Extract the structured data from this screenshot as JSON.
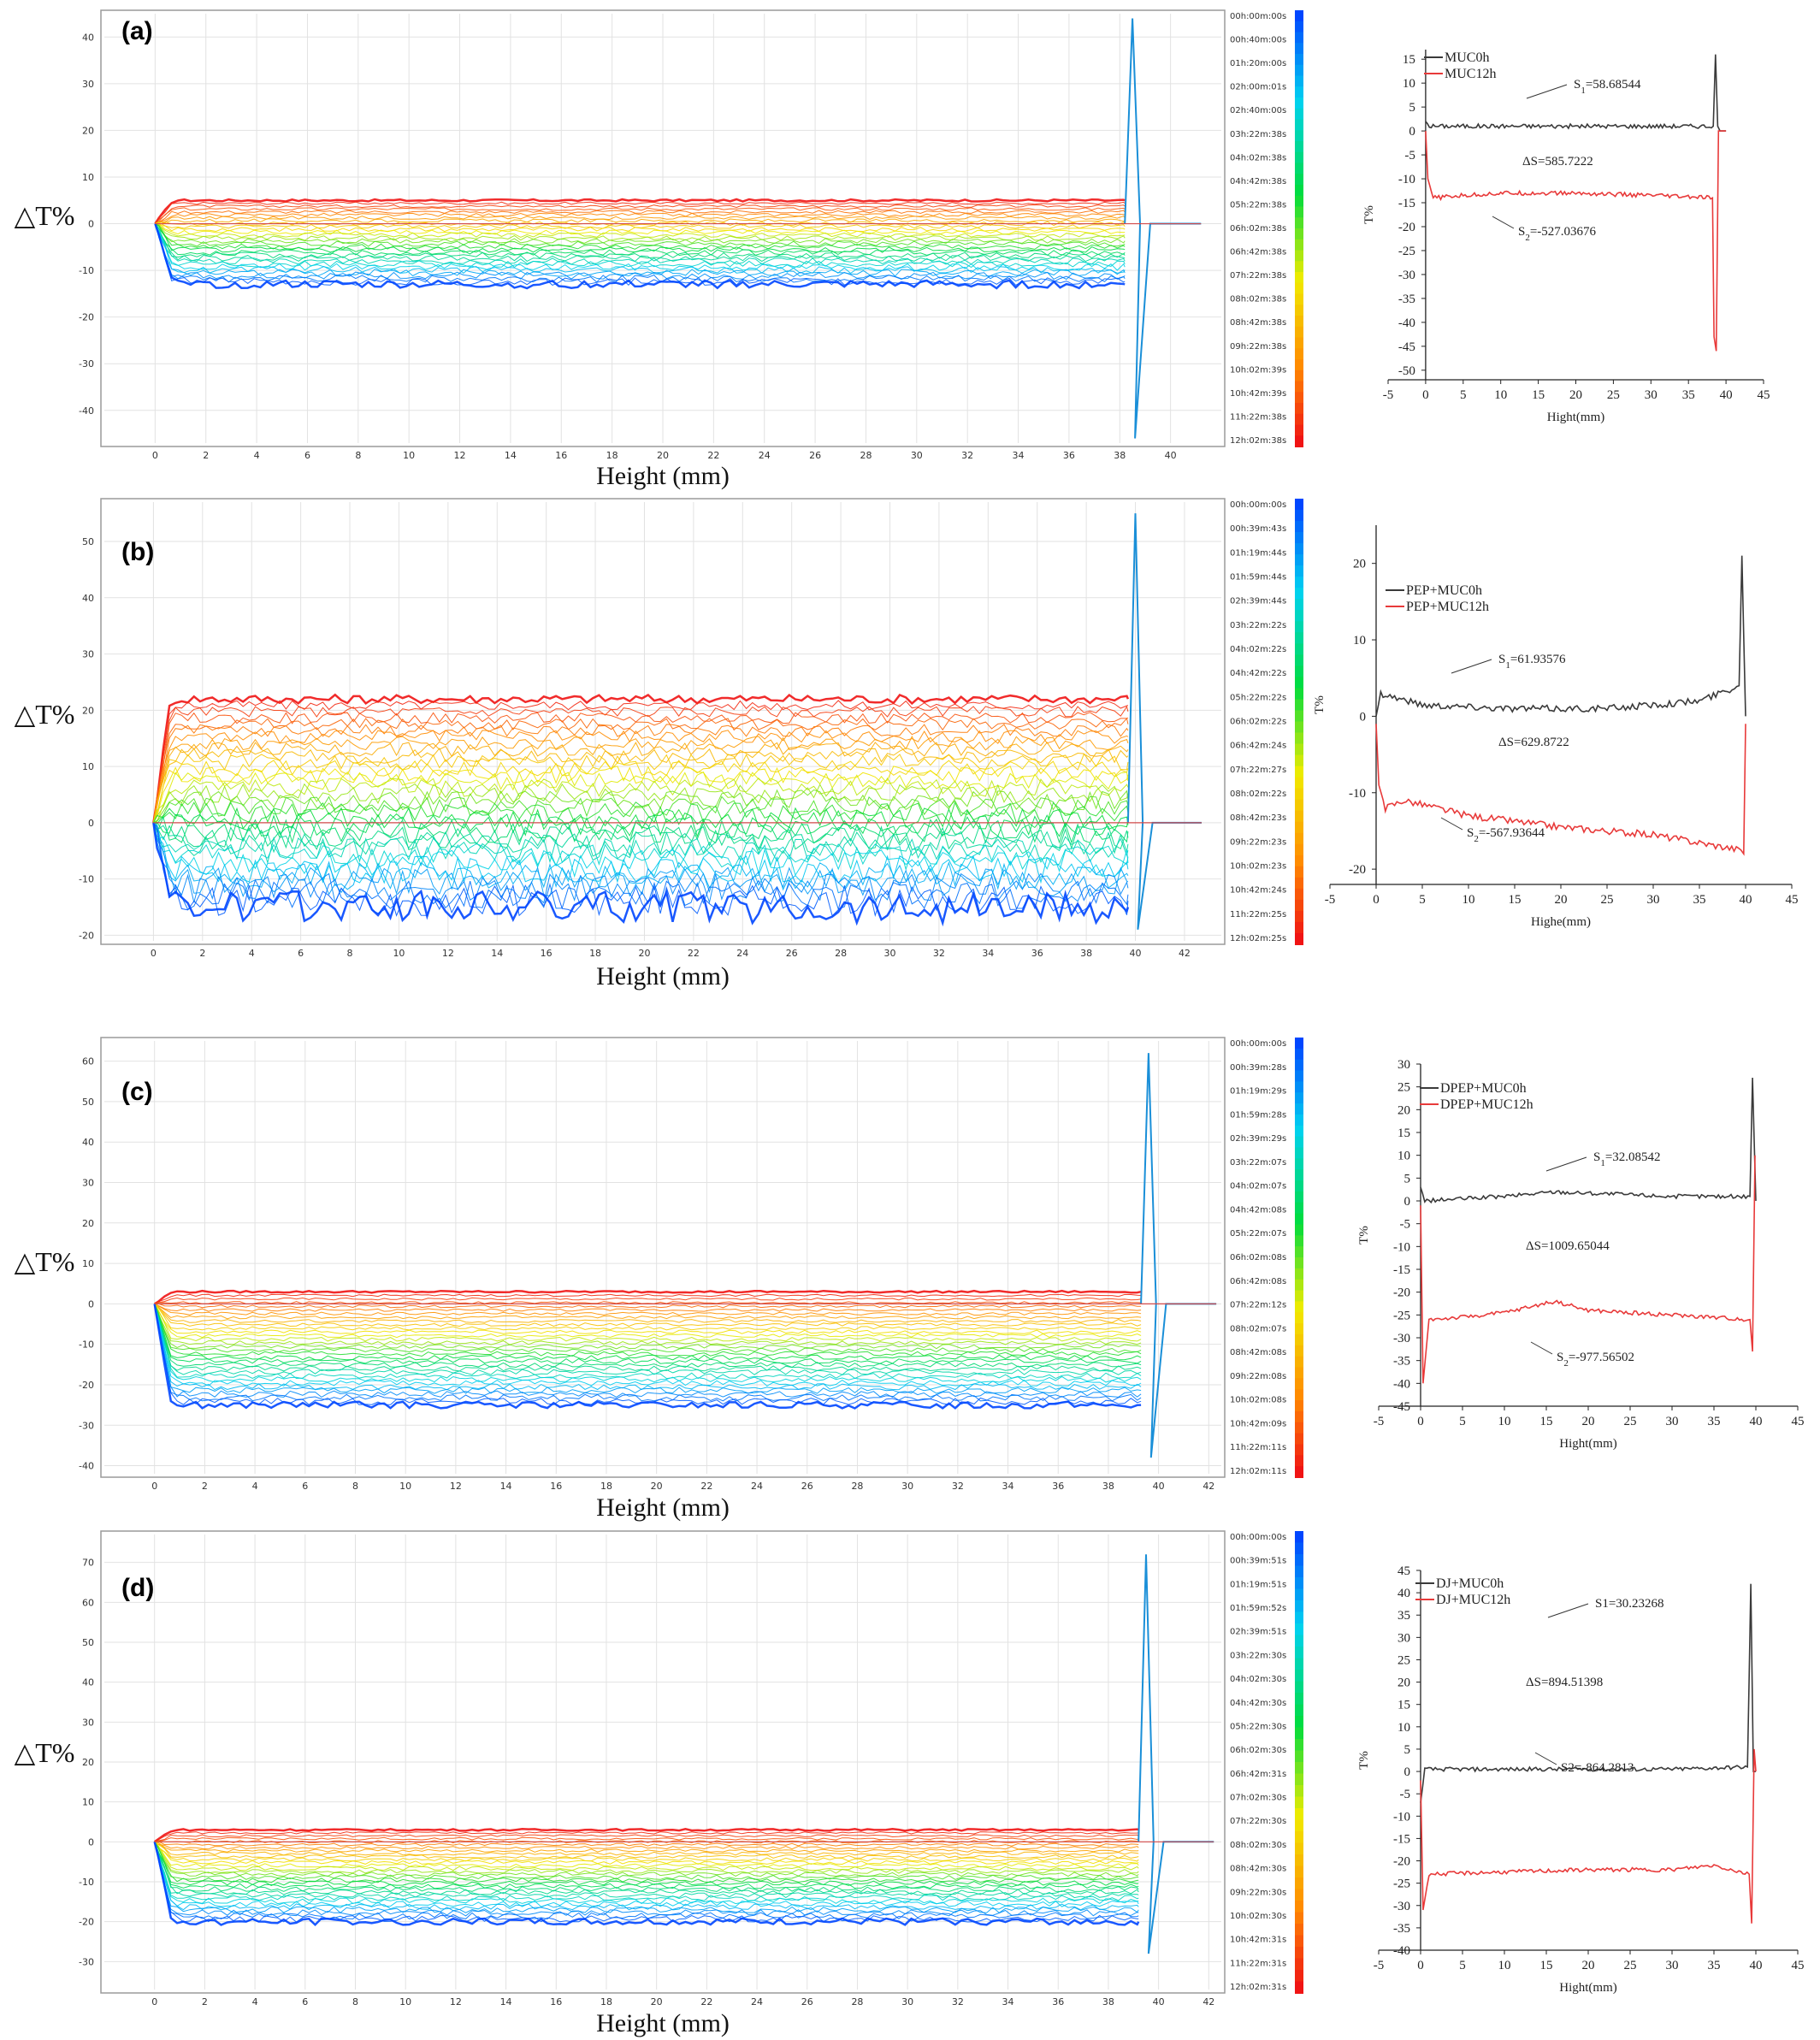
{
  "chart_data": [
    {
      "panel": "(a)",
      "type": "line",
      "role": "turbiscan-delta-transmission",
      "xlabel": "Height (mm)",
      "ylabel": "△T%",
      "xlim": [
        -2,
        42
      ],
      "ylim": [
        -47,
        45
      ],
      "xticks": [
        0,
        2,
        4,
        6,
        8,
        10,
        12,
        14,
        16,
        18,
        20,
        22,
        24,
        26,
        28,
        30,
        32,
        34,
        36,
        38,
        40
      ],
      "yticks": [
        -40,
        -30,
        -20,
        -10,
        0,
        10,
        20,
        30,
        40
      ],
      "sample_end": 38.2,
      "colorbar_times": [
        "00h:00m:00s",
        "00h:40m:00s",
        "01h:20m:00s",
        "02h:00m:01s",
        "02h:40m:00s",
        "03h:22m:38s",
        "04h:02m:38s",
        "04h:42m:38s",
        "05h:22m:38s",
        "06h:02m:38s",
        "06h:42m:38s",
        "07h:22m:38s",
        "08h:02m:38s",
        "08h:42m:38s",
        "09h:22m:38s",
        "10h:02m:39s",
        "10h:42m:39s",
        "11h:22m:38s",
        "12h:02m:38s"
      ],
      "curve_profile": {
        "top_level": 5,
        "bottom_level": -13,
        "n_curves": 30,
        "spike_max": 44,
        "spike_min": -46
      }
    },
    {
      "panel": "(b)",
      "type": "line",
      "role": "turbiscan-delta-transmission",
      "xlabel": "Height (mm)",
      "ylabel": "△T%",
      "xlim": [
        -2,
        43.5
      ],
      "ylim": [
        -21,
        57
      ],
      "xticks": [
        0,
        2,
        4,
        6,
        8,
        10,
        12,
        14,
        16,
        18,
        20,
        22,
        24,
        26,
        28,
        30,
        32,
        34,
        36,
        38,
        40,
        42
      ],
      "yticks": [
        -20,
        -10,
        0,
        10,
        20,
        30,
        40,
        50
      ],
      "sample_end": 39.7,
      "colorbar_times": [
        "00h:00m:00s",
        "00h:39m:43s",
        "01h:19m:44s",
        "01h:59m:44s",
        "02h:39m:44s",
        "03h:22m:22s",
        "04h:02m:22s",
        "04h:42m:22s",
        "05h:22m:22s",
        "06h:02m:22s",
        "06h:42m:24s",
        "07h:22m:27s",
        "08h:02m:22s",
        "08h:42m:23s",
        "09h:22m:23s",
        "10h:02m:23s",
        "10h:42m:24s",
        "11h:22m:25s",
        "12h:02m:25s"
      ],
      "curve_profile": {
        "top_level": 22,
        "bottom_level": -15,
        "n_curves": 34,
        "spike_max": 55,
        "spike_min": -19
      }
    },
    {
      "panel": "(c)",
      "type": "line",
      "role": "turbiscan-delta-transmission",
      "xlabel": "Height (mm)",
      "ylabel": "△T%",
      "xlim": [
        -2,
        42.5
      ],
      "ylim": [
        -42,
        65
      ],
      "xticks": [
        0,
        2,
        4,
        6,
        8,
        10,
        12,
        14,
        16,
        18,
        20,
        22,
        24,
        26,
        28,
        30,
        32,
        34,
        36,
        38,
        40,
        42
      ],
      "yticks": [
        -40,
        -30,
        -20,
        -10,
        0,
        10,
        20,
        30,
        40,
        50,
        60
      ],
      "sample_end": 39.3,
      "colorbar_times": [
        "00h:00m:00s",
        "00h:39m:28s",
        "01h:19m:29s",
        "01h:59m:28s",
        "02h:39m:29s",
        "03h:22m:07s",
        "04h:02m:07s",
        "04h:42m:08s",
        "05h:22m:07s",
        "06h:02m:08s",
        "06h:42m:08s",
        "07h:22m:12s",
        "08h:02m:07s",
        "08h:42m:08s",
        "09h:22m:08s",
        "10h:02m:08s",
        "10h:42m:09s",
        "11h:22m:11s",
        "12h:02m:11s"
      ],
      "curve_profile": {
        "top_level": 3,
        "bottom_level": -25,
        "n_curves": 32,
        "spike_max": 62,
        "spike_min": -38
      }
    },
    {
      "panel": "(d)",
      "type": "line",
      "role": "turbiscan-delta-transmission",
      "xlabel": "Height (mm)",
      "ylabel": "△T%",
      "xlim": [
        -2,
        42.5
      ],
      "ylim": [
        -37,
        77
      ],
      "xticks": [
        0,
        2,
        4,
        6,
        8,
        10,
        12,
        14,
        16,
        18,
        20,
        22,
        24,
        26,
        28,
        30,
        32,
        34,
        36,
        38,
        40,
        42
      ],
      "yticks": [
        -30,
        -20,
        -10,
        0,
        10,
        20,
        30,
        40,
        50,
        60,
        70
      ],
      "sample_end": 39.2,
      "colorbar_times": [
        "00h:00m:00s",
        "00h:39m:51s",
        "01h:19m:51s",
        "01h:59m:52s",
        "02h:39m:51s",
        "03h:22m:30s",
        "04h:02m:30s",
        "04h:42m:30s",
        "05h:22m:30s",
        "06h:02m:30s",
        "06h:42m:31s",
        "07h:02m:30s",
        "07h:22m:30s",
        "08h:02m:30s",
        "08h:42m:30s",
        "09h:22m:30s",
        "10h:02m:30s",
        "10h:42m:31s",
        "11h:22m:31s",
        "12h:02m:31s"
      ],
      "curve_profile": {
        "top_level": 3,
        "bottom_level": -20,
        "n_curves": 32,
        "spike_max": 72,
        "spike_min": -28
      }
    },
    {
      "panel": "(a) right",
      "type": "line",
      "role": "transmission-0h-12h",
      "xlabel": "Hight(mm)",
      "ylabel": "T%",
      "xlim": [
        -5,
        45
      ],
      "ylim": [
        -52,
        17
      ],
      "xticks": [
        -5,
        0,
        5,
        10,
        15,
        20,
        25,
        30,
        35,
        40,
        45
      ],
      "yticks": [
        -50,
        -45,
        -40,
        -35,
        -30,
        -25,
        -20,
        -15,
        -10,
        -5,
        0,
        5,
        10,
        15
      ],
      "series": [
        {
          "name": "MUC0h",
          "color": "#3a3a3a",
          "x": [
            0,
            0.5,
            38.3,
            38.6,
            38.9,
            39.2,
            40
          ],
          "y": [
            2,
            1,
            1,
            16,
            1,
            0,
            0
          ]
        },
        {
          "name": "MUC12h",
          "color": "#e83a3a",
          "x": [
            0,
            0.3,
            1,
            5,
            10,
            20,
            30,
            38.2,
            38.4,
            38.7,
            39,
            40
          ],
          "y": [
            0,
            -10,
            -14,
            -13.5,
            -13,
            -13,
            -13.5,
            -14,
            -43,
            -46,
            0,
            0
          ]
        }
      ],
      "annotations": {
        "s1": "S",
        "s1_sub": "1",
        "s1_val": "=58.68544",
        "ds": "ΔS=585.7222",
        "s2": "S",
        "s2_sub": "2",
        "s2_val": "=-527.03676"
      }
    },
    {
      "panel": "(b) right",
      "type": "line",
      "role": "transmission-0h-12h",
      "xlabel": "Highe(mm)",
      "ylabel": "T%",
      "xlim": [
        -5,
        45
      ],
      "ylim": [
        -22,
        25
      ],
      "xticks": [
        -5,
        0,
        5,
        10,
        15,
        20,
        25,
        30,
        35,
        40,
        45
      ],
      "yticks": [
        -20,
        -10,
        0,
        10,
        20
      ],
      "series": [
        {
          "name": "PEP+MUC0h",
          "color": "#3a3a3a",
          "x": [
            0,
            0.5,
            5,
            15,
            25,
            35,
            39.3,
            39.6,
            40
          ],
          "y": [
            0,
            3,
            1.5,
            1,
            1,
            2,
            4,
            21,
            0
          ]
        },
        {
          "name": "PEP+MUC12h",
          "color": "#e83a3a",
          "x": [
            0,
            0.3,
            1,
            3,
            10,
            20,
            30,
            39.5,
            39.8,
            40
          ],
          "y": [
            -1,
            -9,
            -12,
            -11,
            -13,
            -14.5,
            -15.5,
            -17.5,
            -18,
            -1
          ]
        }
      ],
      "annotations": {
        "s1": "S",
        "s1_sub": "1",
        "s1_val": "=61.93576",
        "ds": "ΔS=629.8722",
        "s2": "S",
        "s2_sub": "2",
        "s2_val": "=-567.93644"
      }
    },
    {
      "panel": "(c) right",
      "type": "line",
      "role": "transmission-0h-12h",
      "xlabel": "Hight(mm)",
      "ylabel": "T%",
      "xlim": [
        -5,
        45
      ],
      "ylim": [
        -45,
        30
      ],
      "xticks": [
        -5,
        0,
        5,
        10,
        15,
        20,
        25,
        30,
        35,
        40,
        45
      ],
      "yticks": [
        -45,
        -40,
        -35,
        -30,
        -25,
        -20,
        -15,
        -10,
        -5,
        0,
        5,
        10,
        15,
        20,
        25,
        30
      ],
      "series": [
        {
          "name": "DPEP+MUC0h",
          "color": "#3a3a3a",
          "x": [
            0,
            0.5,
            10,
            16,
            30,
            39.3,
            39.6,
            40
          ],
          "y": [
            3,
            0,
            1,
            2,
            1,
            1,
            27,
            0
          ]
        },
        {
          "name": "DPEP+MUC12h",
          "color": "#e83a3a",
          "x": [
            0,
            0.3,
            1,
            5,
            10,
            16,
            20,
            30,
            39.3,
            39.6,
            39.9
          ],
          "y": [
            -1,
            -40,
            -26,
            -25.5,
            -24.5,
            -22,
            -24,
            -25,
            -26,
            -33,
            10
          ]
        }
      ],
      "annotations": {
        "s1": "S",
        "s1_sub": "1",
        "s1_val": "=32.08542",
        "ds": "ΔS=1009.65044",
        "s2": "S",
        "s2_sub": "2",
        "s2_val": "=-977.56502"
      }
    },
    {
      "panel": "(d) right",
      "type": "line",
      "role": "transmission-0h-12h",
      "xlabel": "Hight(mm)",
      "ylabel": "T%",
      "xlim": [
        -5,
        45
      ],
      "ylim": [
        -40,
        45
      ],
      "xticks": [
        -5,
        0,
        5,
        10,
        15,
        20,
        25,
        30,
        35,
        40,
        45
      ],
      "yticks": [
        -40,
        -35,
        -30,
        -25,
        -20,
        -15,
        -10,
        -5,
        0,
        5,
        10,
        15,
        20,
        25,
        30,
        35,
        40,
        45
      ],
      "series": [
        {
          "name": "DJ+MUC0h",
          "color": "#3a3a3a",
          "x": [
            0,
            0.5,
            10,
            20,
            30,
            39,
            39.4,
            39.7,
            40
          ],
          "y": [
            -7,
            0.5,
            0.5,
            0.5,
            0.5,
            1,
            42,
            0,
            0
          ]
        },
        {
          "name": "DJ+MUC12h",
          "color": "#e83a3a",
          "x": [
            0,
            0.3,
            1,
            10,
            20,
            30,
            35,
            39.2,
            39.5,
            39.8,
            40
          ],
          "y": [
            -2,
            -31,
            -23,
            -22.5,
            -22,
            -22,
            -21,
            -23,
            -34,
            5,
            0
          ]
        }
      ],
      "annotations": {
        "s1": "S1",
        "s1_sub": "",
        "s1_val": "=30.23268",
        "ds": "ΔS=894.51398",
        "s2": "S2",
        "s2_sub": "",
        "s2_val": "=-864.2813"
      }
    }
  ]
}
